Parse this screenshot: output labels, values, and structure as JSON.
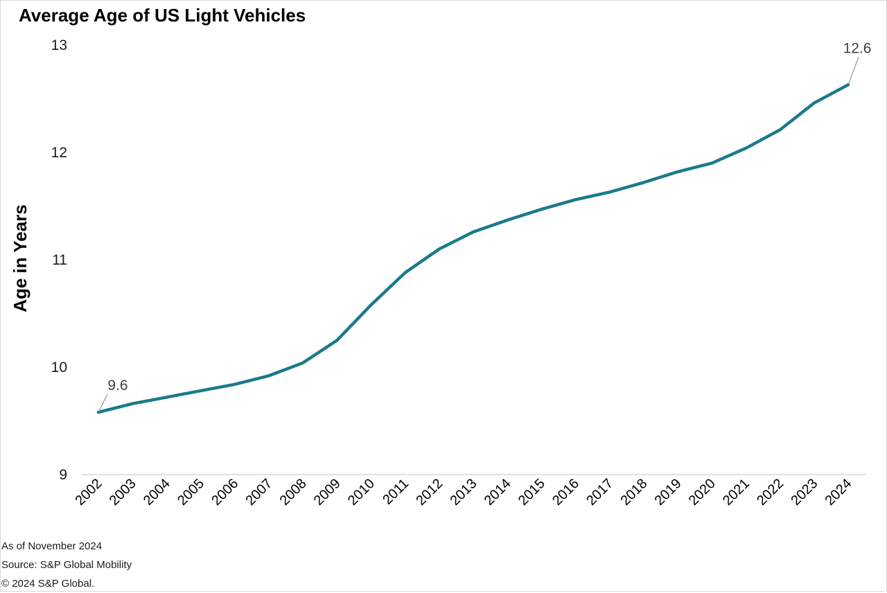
{
  "chart_data": {
    "type": "line",
    "title": "Average Age of US Light Vehicles",
    "xlabel": "",
    "ylabel": "Age in Years",
    "ylim": [
      9,
      13
    ],
    "yticks": [
      "9",
      "10",
      "11",
      "12",
      "13"
    ],
    "grid": false,
    "legend": "none",
    "categories": [
      "2002",
      "2003",
      "2004",
      "2005",
      "2006",
      "2007",
      "2008",
      "2009",
      "2010",
      "2011",
      "2012",
      "2013",
      "2014",
      "2015",
      "2016",
      "2017",
      "2018",
      "2019",
      "2020",
      "2021",
      "2022",
      "2023",
      "2024"
    ],
    "series": [
      {
        "name": "Average Age",
        "color": "#1a7a8a",
        "values": [
          9.58,
          9.66,
          9.72,
          9.78,
          9.84,
          9.92,
          10.04,
          10.25,
          10.58,
          10.88,
          11.1,
          11.26,
          11.37,
          11.47,
          11.56,
          11.63,
          11.72,
          11.82,
          11.9,
          12.04,
          12.21,
          12.46,
          12.63
        ]
      }
    ],
    "annotations": [
      {
        "category": "2002",
        "text": "9.6"
      },
      {
        "category": "2024",
        "text": "12.6"
      }
    ]
  },
  "footnotes": {
    "as_of": "As of November 2024",
    "source": "Source: S&P Global Mobility",
    "copyright": "© 2024 S&P Global."
  }
}
